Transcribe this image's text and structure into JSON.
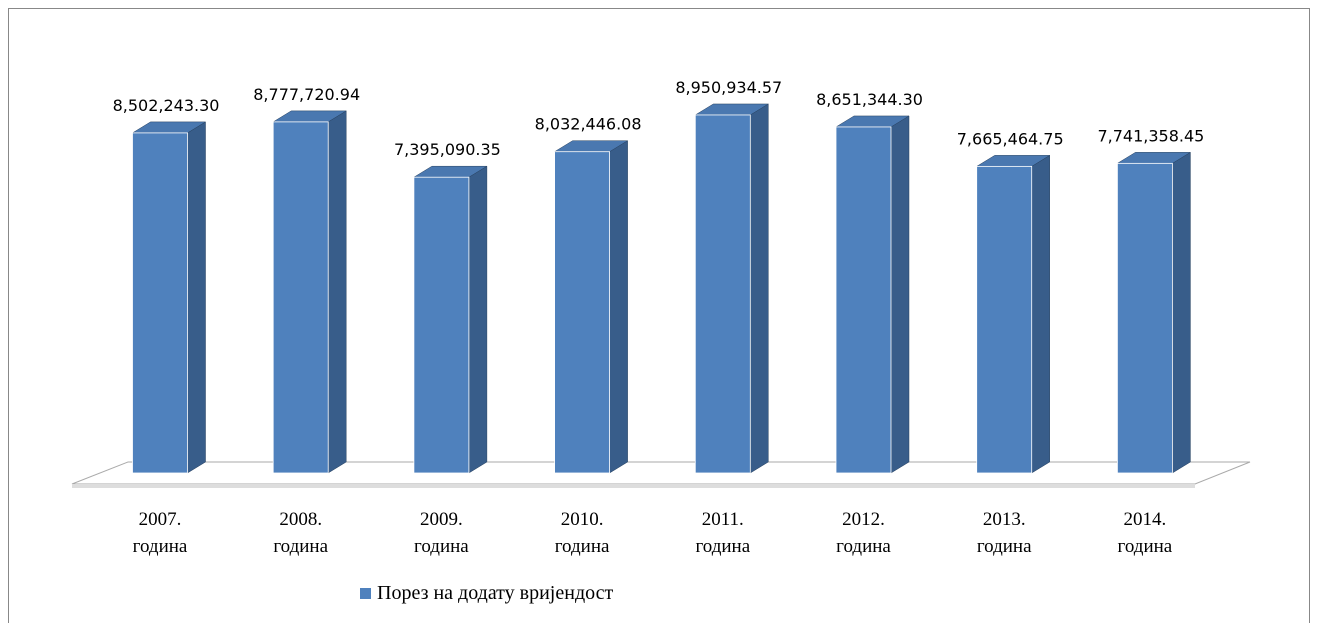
{
  "chart_data": {
    "type": "bar3d",
    "categories": [
      "2007. година",
      "2008. година",
      "2009. година",
      "2010. година",
      "2011. година",
      "2012. година",
      "2013. година",
      "2014. година"
    ],
    "series": [
      {
        "name": "Порез на додату вријендост",
        "color": "#4f81bd",
        "values": [
          8502243.3,
          8777720.94,
          7395090.35,
          8032446.08,
          8950934.57,
          8651344.3,
          7665464.75,
          7741358.45
        ],
        "value_labels": [
          "8,502,243.30",
          "8,777,720.94",
          "7,395,090.35",
          "8,032,446.08",
          "8,950,934.57",
          "8,651,344.30",
          "7,665,464.75",
          "7,741,358.45"
        ]
      }
    ],
    "ylim": [
      0,
      10000000
    ],
    "legend": "bottom"
  }
}
